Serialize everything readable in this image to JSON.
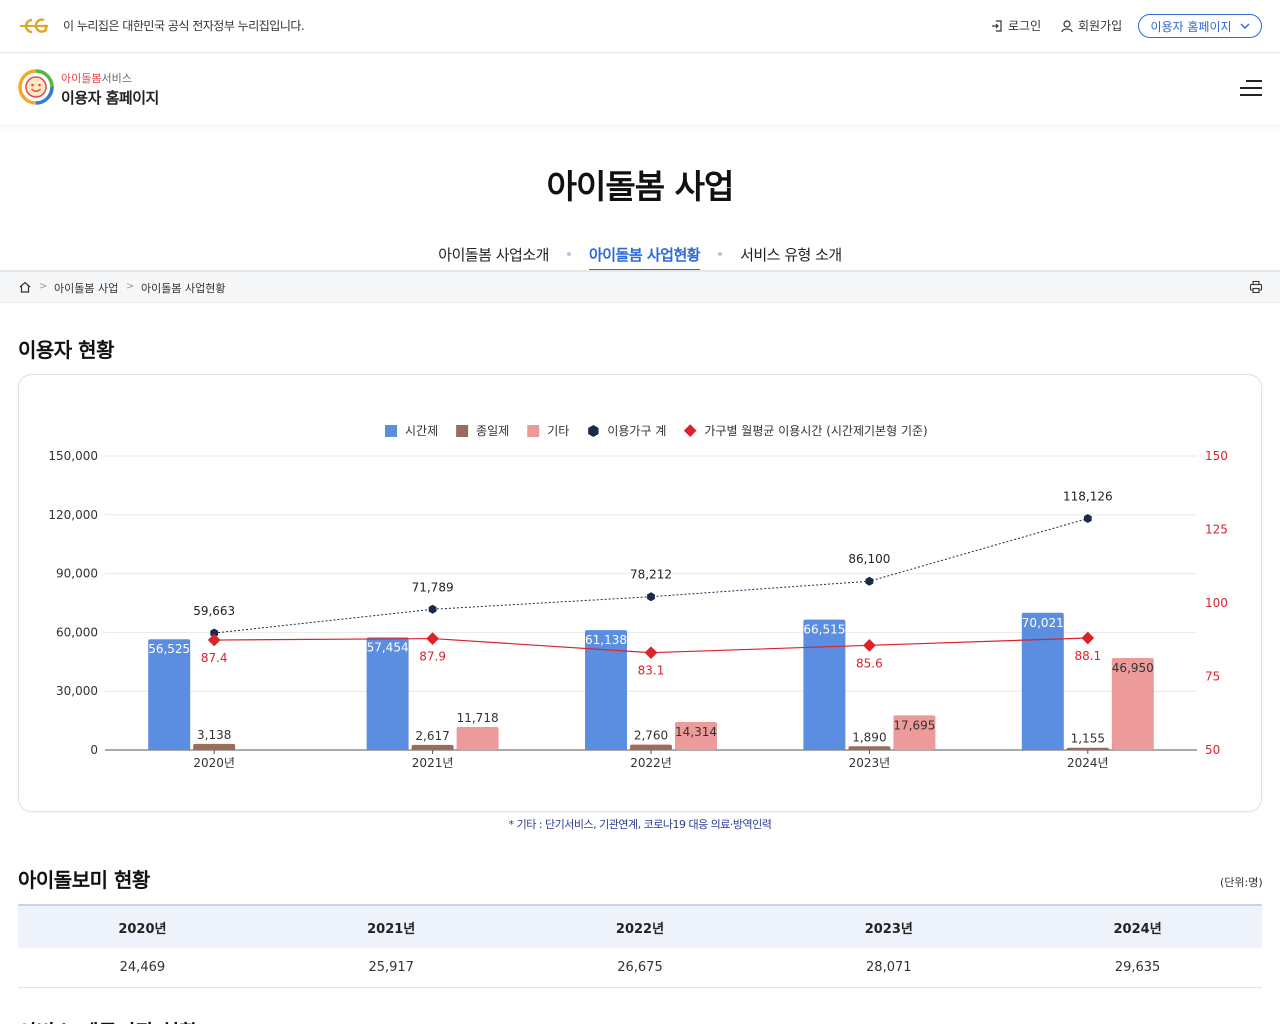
{
  "gov_bar": {
    "notice": "이 누리집은 대한민국 공식 전자정부 누리집입니다.",
    "login": "로그인",
    "signup": "회원가입",
    "site_select": "이용자 홈페이지"
  },
  "header": {
    "brand_prefix": "아이돌봄",
    "brand_suffix": "서비스",
    "brand_main": "이용자 홈페이지"
  },
  "page": {
    "title": "아이돌봄 사업",
    "tabs": [
      {
        "label": "아이돌봄 사업소개",
        "active": false
      },
      {
        "label": "아이돌봄 사업현황",
        "active": true
      },
      {
        "label": "서비스 유형 소개",
        "active": false
      }
    ]
  },
  "breadcrumb": [
    "아이돌봄 사업",
    "아이돌봄 사업현황"
  ],
  "sections": {
    "users": "이용자 현황",
    "sitters": "아이돌보미 현황",
    "next": "서비스 제공기관 현황"
  },
  "chart_note": "* 기타 : 단기서비스, 기관연계, 코로나19 대응 의료·방역인력",
  "chart_data": {
    "type": "bar",
    "categories": [
      "2020년",
      "2021년",
      "2022년",
      "2023년",
      "2024년"
    ],
    "series": [
      {
        "name": "시간제",
        "kind": "bar",
        "color": "#5b8de0",
        "values": [
          56525,
          57454,
          61138,
          66515,
          70021
        ]
      },
      {
        "name": "종일제",
        "kind": "bar",
        "color": "#9b6b5b",
        "values": [
          3138,
          2617,
          2760,
          1890,
          1155
        ]
      },
      {
        "name": "기타",
        "kind": "bar",
        "color": "#ec9a9a",
        "values": [
          null,
          11718,
          14314,
          17695,
          46950
        ]
      },
      {
        "name": "이용가구 계",
        "kind": "line",
        "axis": "left",
        "color": "#1a2a4a",
        "values": [
          59663,
          71789,
          78212,
          86100,
          118126
        ]
      },
      {
        "name": "가구별 월평균 이용시간 (시간제기본형 기준)",
        "kind": "line",
        "axis": "right",
        "color": "#d9232d",
        "values": [
          87.4,
          87.9,
          83.1,
          85.6,
          88.1
        ]
      }
    ],
    "y_left": {
      "min": 0,
      "max": 150000,
      "ticks": [
        "0",
        "30,000",
        "60,000",
        "90,000",
        "120,000",
        "150,000"
      ]
    },
    "y_right": {
      "min": 50,
      "max": 150,
      "ticks": [
        "50",
        "75",
        "100",
        "125",
        "150"
      ]
    },
    "legend_position": "top-center",
    "grid": true
  },
  "sitters_table": {
    "unit": "(단위:명)",
    "headers": [
      "2020년",
      "2021년",
      "2022년",
      "2023년",
      "2024년"
    ],
    "values": [
      "24,469",
      "25,917",
      "26,675",
      "28,071",
      "29,635"
    ]
  }
}
